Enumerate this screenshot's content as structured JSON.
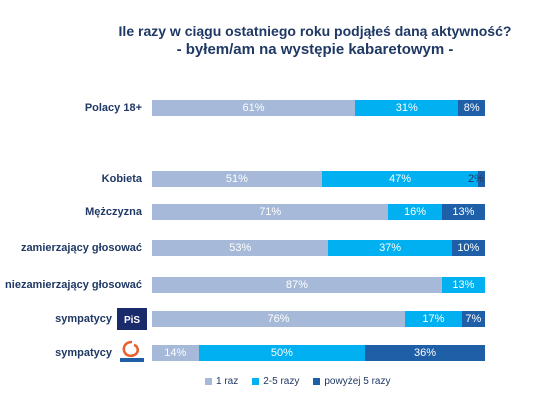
{
  "chart_data": {
    "type": "bar",
    "orientation": "horizontal",
    "stacked": true,
    "title": "Ile razy w ciągu ostatniego roku podjąłeś daną aktywność?",
    "subtitle": "- byłem/am na występie kabaretowym -",
    "categories": [
      {
        "label": "Polacy 18+",
        "logo": null
      },
      {
        "label": "Kobieta",
        "logo": null
      },
      {
        "label": "Mężczyzna",
        "logo": null
      },
      {
        "label": "zamierzający głosować",
        "logo": null
      },
      {
        "label": "niezamierzający głosować",
        "logo": null
      },
      {
        "label": "sympatycy",
        "logo": "pis-logo"
      },
      {
        "label": "sympatycy",
        "logo": "po-logo"
      }
    ],
    "series": [
      {
        "name": "1 raz",
        "color": "#a6b9d8",
        "values": [
          61,
          51,
          71,
          53,
          87,
          76,
          14
        ]
      },
      {
        "name": "2-5 razy",
        "color": "#00b0f0",
        "values": [
          31,
          47,
          16,
          37,
          13,
          17,
          50
        ]
      },
      {
        "name": "powyżej 5 razy",
        "color": "#1f5fa8",
        "values": [
          8,
          2,
          13,
          10,
          0,
          7,
          36
        ]
      }
    ],
    "data_labels": [
      [
        "61%",
        "31%",
        "8%"
      ],
      [
        "51%",
        "47%",
        "2%"
      ],
      [
        "71%",
        "16%",
        "13%"
      ],
      [
        "53%",
        "37%",
        "10%"
      ],
      [
        "87%",
        "13%",
        ""
      ],
      [
        "76%",
        "17%",
        "7%"
      ],
      [
        "14%",
        "50%",
        "36%"
      ]
    ],
    "xlim": [
      0,
      100
    ],
    "legend_position": "bottom",
    "grid": false
  }
}
